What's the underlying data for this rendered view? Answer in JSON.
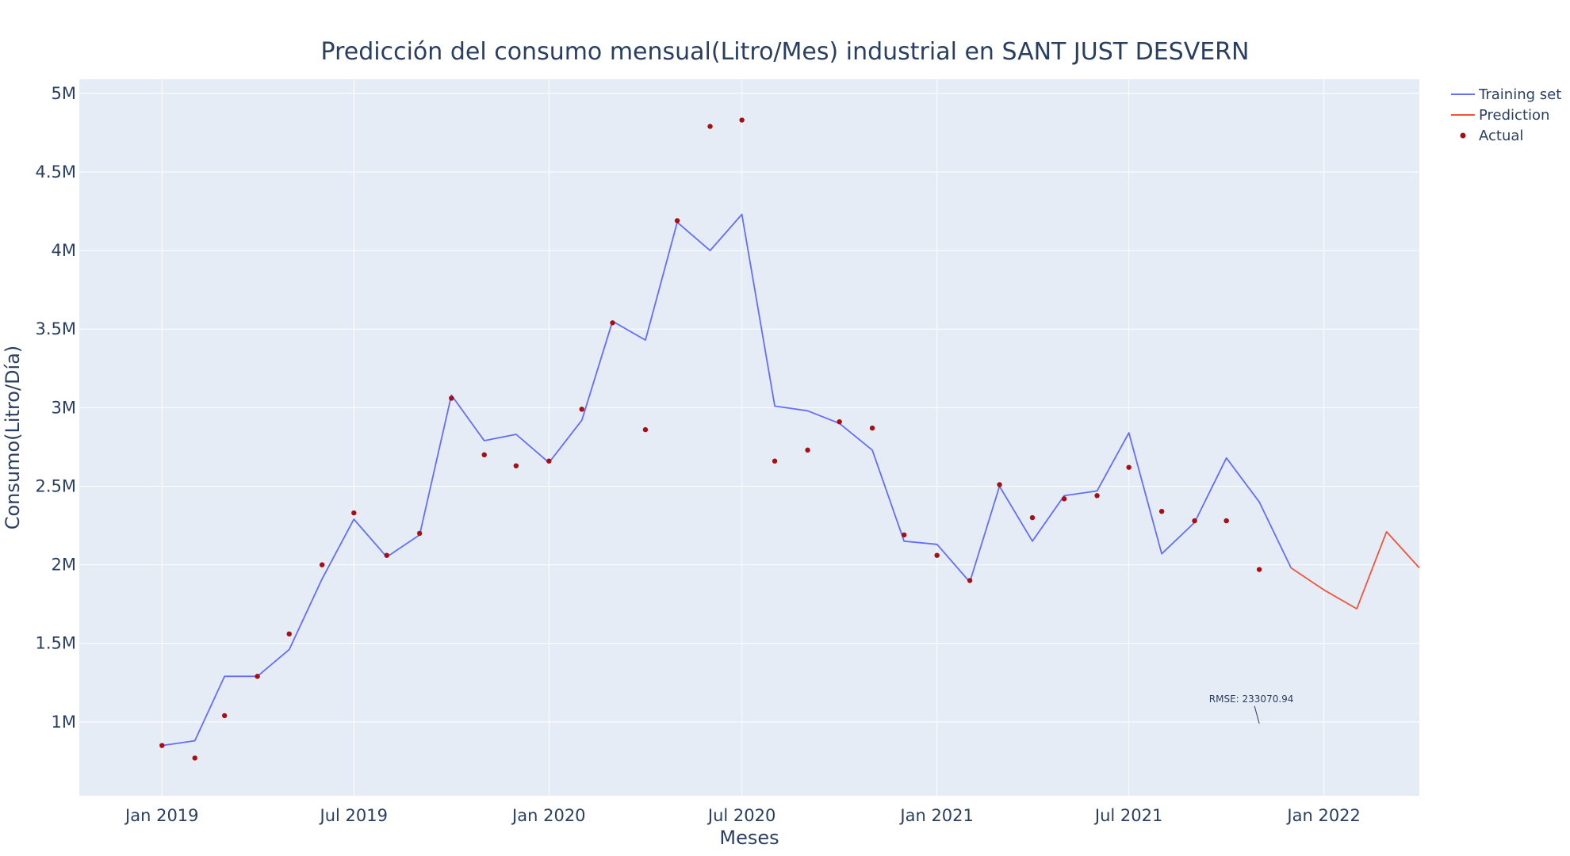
{
  "chart_data": {
    "type": "line",
    "title": "Predicción del consumo mensual(Litro/Mes) industrial en SANT JUST DESVERN",
    "xlabel": "Meses",
    "ylabel": "Consumo(Litro/Día)",
    "x_range": [
      "2018-10-15",
      "2022-04-01"
    ],
    "ylim": [
      530000,
      5090000
    ],
    "x_ticks": [
      {
        "date": "2019-01-01",
        "label": "Jan 2019"
      },
      {
        "date": "2019-07-01",
        "label": "Jul 2019"
      },
      {
        "date": "2020-01-01",
        "label": "Jan 2020"
      },
      {
        "date": "2020-07-01",
        "label": "Jul 2020"
      },
      {
        "date": "2021-01-01",
        "label": "Jan 2021"
      },
      {
        "date": "2021-07-01",
        "label": "Jul 2021"
      },
      {
        "date": "2022-01-01",
        "label": "Jan 2022"
      }
    ],
    "y_ticks": [
      {
        "value": 1000000,
        "label": "1M"
      },
      {
        "value": 1500000,
        "label": "1.5M"
      },
      {
        "value": 2000000,
        "label": "2M"
      },
      {
        "value": 2500000,
        "label": "2.5M"
      },
      {
        "value": 3000000,
        "label": "3M"
      },
      {
        "value": 3500000,
        "label": "3.5M"
      },
      {
        "value": 4000000,
        "label": "4M"
      },
      {
        "value": 4500000,
        "label": "4.5M"
      },
      {
        "value": 5000000,
        "label": "5M"
      }
    ],
    "grid": true,
    "legend_position": "top-right",
    "series": [
      {
        "name": "Training set",
        "mode": "line",
        "color": "#636efa",
        "x": [
          "2019-01-01",
          "2019-02-01",
          "2019-03-01",
          "2019-04-01",
          "2019-05-01",
          "2019-06-01",
          "2019-07-01",
          "2019-08-01",
          "2019-09-01",
          "2019-10-01",
          "2019-11-01",
          "2019-12-01",
          "2020-01-01",
          "2020-02-01",
          "2020-03-01",
          "2020-04-01",
          "2020-05-01",
          "2020-06-01",
          "2020-07-01",
          "2020-08-01",
          "2020-09-01",
          "2020-10-01",
          "2020-11-01",
          "2020-12-01",
          "2021-01-01",
          "2021-02-01",
          "2021-03-01",
          "2021-04-01",
          "2021-05-01",
          "2021-06-01",
          "2021-07-01",
          "2021-08-01",
          "2021-09-01",
          "2021-10-01",
          "2021-11-01",
          "2021-12-01"
        ],
        "y": [
          850000,
          880000,
          1290000,
          1290000,
          1460000,
          1910000,
          2290000,
          2050000,
          2190000,
          3080000,
          2790000,
          2830000,
          2650000,
          2920000,
          3550000,
          3430000,
          4180000,
          4000000,
          4230000,
          3010000,
          2980000,
          2900000,
          2730000,
          2150000,
          2130000,
          1890000,
          2500000,
          2150000,
          2440000,
          2470000,
          2840000,
          2070000,
          2270000,
          2680000,
          2400000,
          1980000
        ]
      },
      {
        "name": "Prediction",
        "mode": "line",
        "color": "#ef553b",
        "x": [
          "2021-12-01",
          "2022-01-01",
          "2022-02-01",
          "2022-03-01",
          "2022-04-01"
        ],
        "y": [
          1980000,
          1840000,
          1720000,
          2210000,
          1980000
        ]
      },
      {
        "name": "Actual",
        "mode": "markers",
        "color": "#a50f15",
        "x": [
          "2019-01-01",
          "2019-02-01",
          "2019-03-01",
          "2019-04-01",
          "2019-05-01",
          "2019-06-01",
          "2019-07-01",
          "2019-08-01",
          "2019-09-01",
          "2019-10-01",
          "2019-11-01",
          "2019-12-01",
          "2020-01-01",
          "2020-02-01",
          "2020-03-01",
          "2020-04-01",
          "2020-05-01",
          "2020-06-01",
          "2020-07-01",
          "2020-08-01",
          "2020-09-01",
          "2020-10-01",
          "2020-11-01",
          "2020-12-01",
          "2021-01-01",
          "2021-02-01",
          "2021-03-01",
          "2021-04-01",
          "2021-05-01",
          "2021-06-01",
          "2021-07-01",
          "2021-08-01",
          "2021-09-01",
          "2021-10-01",
          "2021-11-01"
        ],
        "y": [
          850000,
          770000,
          1040000,
          1290000,
          1560000,
          2000000,
          2330000,
          2060000,
          2200000,
          3060000,
          2700000,
          2630000,
          2660000,
          2990000,
          3540000,
          2860000,
          4190000,
          4790000,
          4830000,
          2660000,
          2730000,
          2910000,
          2870000,
          2190000,
          2060000,
          1900000,
          2510000,
          2300000,
          2420000,
          2440000,
          2620000,
          2340000,
          2280000,
          2280000,
          1970000
        ]
      }
    ],
    "annotations": [
      {
        "text": "RMSE: 233070.94",
        "x": "2021-11-01",
        "y": 990000
      }
    ],
    "colors": {
      "plot_background": "#e5ecf6",
      "grid": "#ffffff",
      "text": "#2a3f5f"
    }
  }
}
